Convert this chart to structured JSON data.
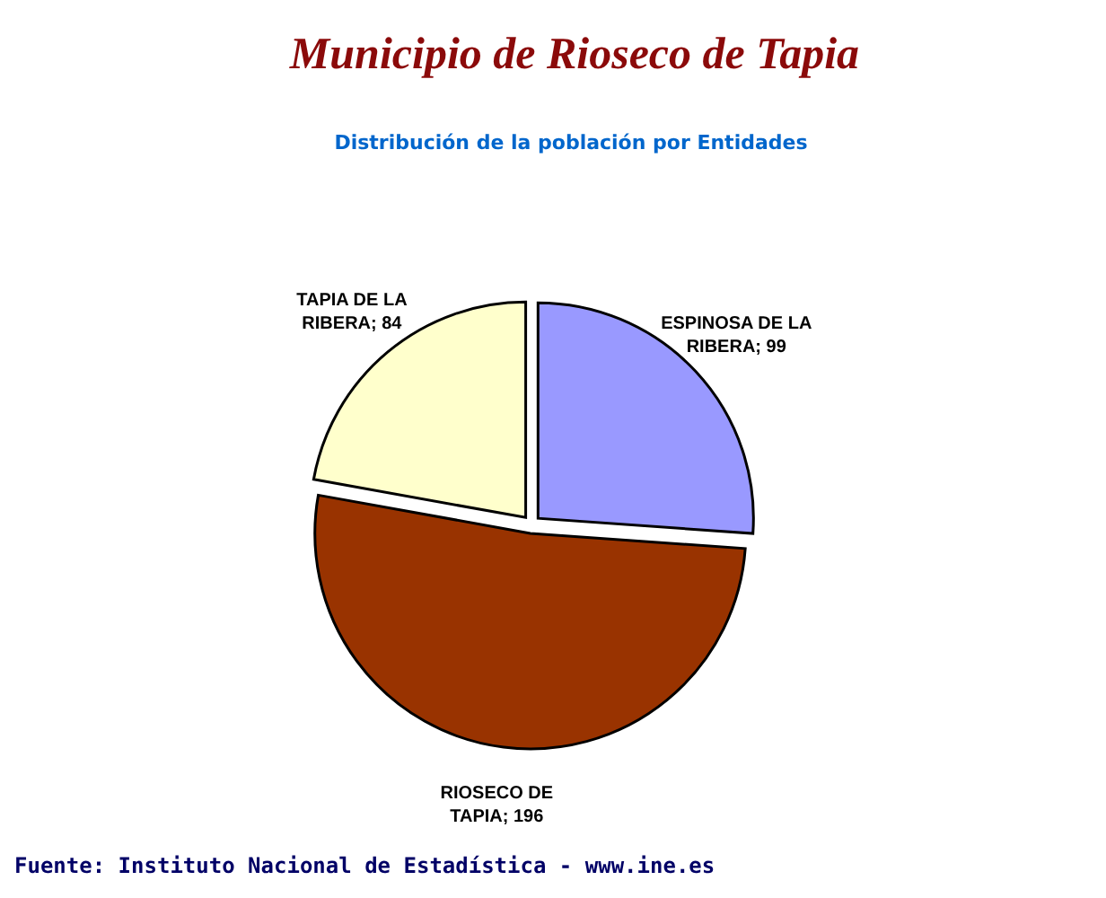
{
  "chart_data": {
    "type": "pie",
    "title": "Municipio de Rioseco de Tapia",
    "subtitle": "Distribución de la población por Entidades",
    "categories": [
      "ESPINOSA DE LA RIBERA",
      "RIOSECO DE TAPIA",
      "TAPIA DE LA RIBERA"
    ],
    "values": [
      99,
      196,
      84
    ],
    "colors": [
      "#9999ff",
      "#993300",
      "#ffffcc"
    ],
    "value_labels": [
      "; 99",
      "; 196",
      "; 84"
    ],
    "annotations": [
      "Fuente: Instituto Nacional de Estadística - www.ine.es"
    ]
  }
}
